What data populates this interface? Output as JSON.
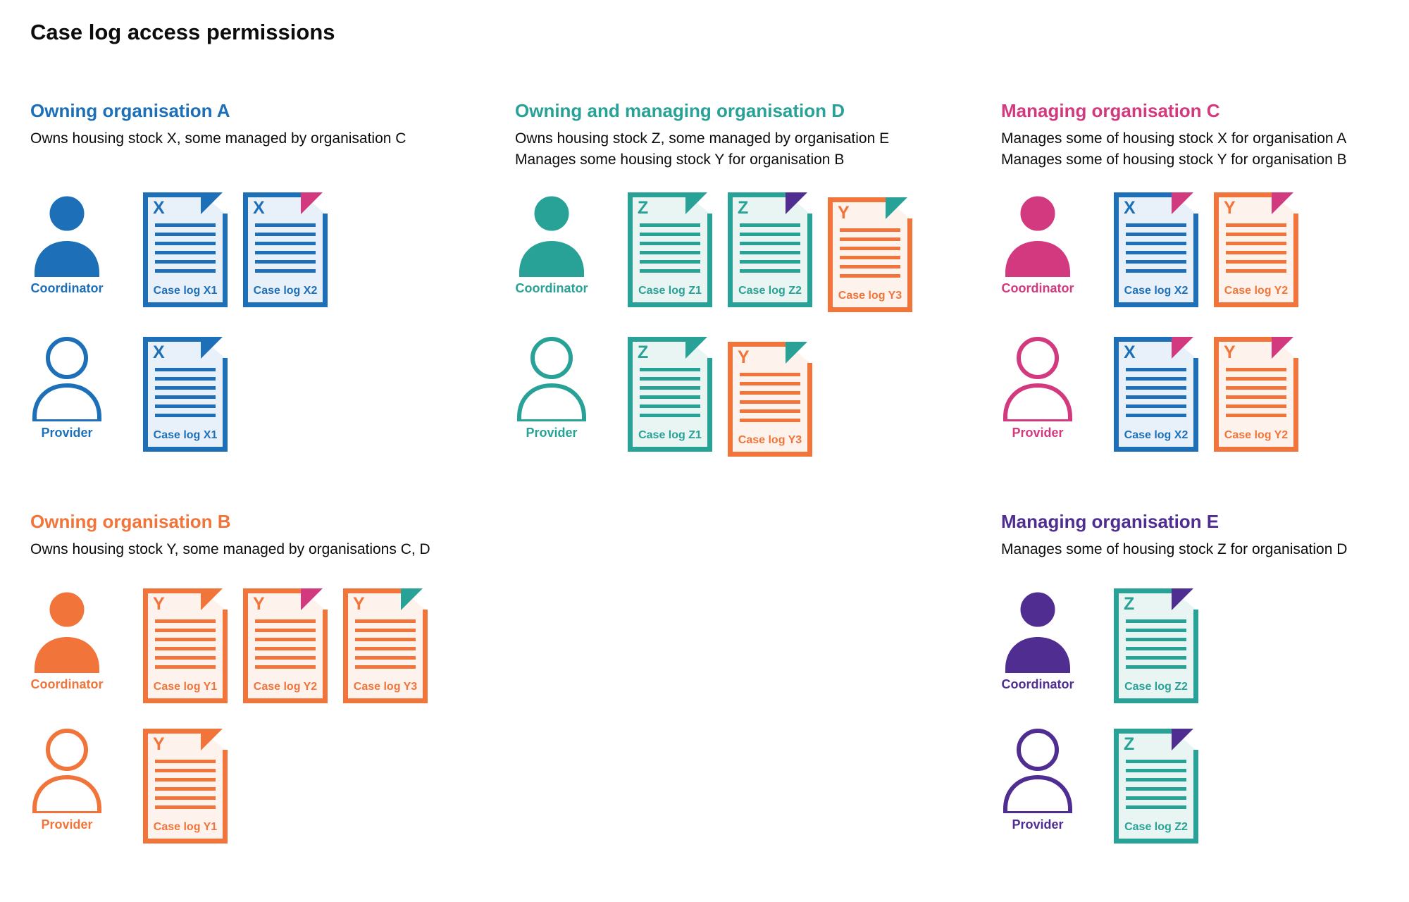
{
  "title": "Case log access permissions",
  "palette": {
    "blue": "#1d70b8",
    "teal": "#28a197",
    "orange": "#f1753a",
    "pink": "#d2397e",
    "purple": "#4f2d91",
    "text": "#0b0c0c",
    "tint_blue": "#e8f1f9",
    "tint_teal": "#e9f5f2",
    "tint_orange": "#fdf3ec"
  },
  "sections": [
    {
      "id": "org-a",
      "heading": "Owning organisation A",
      "color": "blue",
      "description": [
        "Owns housing stock X, some managed by organisation C"
      ],
      "roles": [
        {
          "label": "Coordinator",
          "filled": true,
          "docs": [
            {
              "letter": "X",
              "label": "Case log X1",
              "stock": "blue",
              "flap": "blue"
            },
            {
              "letter": "X",
              "label": "Case log X2",
              "stock": "blue",
              "flap": "pink"
            }
          ]
        },
        {
          "label": "Provider",
          "filled": false,
          "docs": [
            {
              "letter": "X",
              "label": "Case log X1",
              "stock": "blue",
              "flap": "blue"
            }
          ]
        }
      ]
    },
    {
      "id": "org-d",
      "heading": "Owning and managing organisation D",
      "color": "teal",
      "description": [
        "Owns housing stock Z, some managed by organisation E",
        "Manages some housing stock Y for organisation B"
      ],
      "roles": [
        {
          "label": "Coordinator",
          "filled": true,
          "docs": [
            {
              "letter": "Z",
              "label": "Case log Z1",
              "stock": "teal",
              "flap": "teal"
            },
            {
              "letter": "Z",
              "label": "Case log Z2",
              "stock": "teal",
              "flap": "purple"
            },
            {
              "letter": "Y",
              "label": "Case log Y3",
              "stock": "orange",
              "flap": "teal",
              "nudge": true
            }
          ]
        },
        {
          "label": "Provider",
          "filled": false,
          "docs": [
            {
              "letter": "Z",
              "label": "Case log Z1",
              "stock": "teal",
              "flap": "teal"
            },
            {
              "letter": "Y",
              "label": "Case log Y3",
              "stock": "orange",
              "flap": "teal",
              "nudge": true
            }
          ]
        }
      ]
    },
    {
      "id": "org-c",
      "heading": "Managing organisation C",
      "color": "pink",
      "description": [
        "Manages some of housing stock X for organisation A",
        "Manages some of housing stock Y for organisation B"
      ],
      "roles": [
        {
          "label": "Coordinator",
          "filled": true,
          "docs": [
            {
              "letter": "X",
              "label": "Case log X2",
              "stock": "blue",
              "flap": "pink"
            },
            {
              "letter": "Y",
              "label": "Case log Y2",
              "stock": "orange",
              "flap": "pink"
            }
          ]
        },
        {
          "label": "Provider",
          "filled": false,
          "docs": [
            {
              "letter": "X",
              "label": "Case log X2",
              "stock": "blue",
              "flap": "pink"
            },
            {
              "letter": "Y",
              "label": "Case log Y2",
              "stock": "orange",
              "flap": "pink"
            }
          ]
        }
      ]
    },
    {
      "id": "org-b",
      "heading": "Owning organisation B",
      "color": "orange",
      "description": [
        "Owns housing stock Y, some managed by organisations C, D"
      ],
      "roles": [
        {
          "label": "Coordinator",
          "filled": true,
          "docs": [
            {
              "letter": "Y",
              "label": "Case log Y1",
              "stock": "orange",
              "flap": "orange"
            },
            {
              "letter": "Y",
              "label": "Case log Y2",
              "stock": "orange",
              "flap": "pink"
            },
            {
              "letter": "Y",
              "label": "Case log Y3",
              "stock": "orange",
              "flap": "teal"
            }
          ]
        },
        {
          "label": "Provider",
          "filled": false,
          "docs": [
            {
              "letter": "Y",
              "label": "Case log Y1",
              "stock": "orange",
              "flap": "orange"
            }
          ]
        }
      ]
    },
    {
      "id": "org-e",
      "heading": "Managing organisation E",
      "color": "purple",
      "description": [
        "Manages some of housing stock Z for organisation D"
      ],
      "roles": [
        {
          "label": "Coordinator",
          "filled": true,
          "docs": [
            {
              "letter": "Z",
              "label": "Case log Z2",
              "stock": "teal",
              "flap": "purple"
            }
          ]
        },
        {
          "label": "Provider",
          "filled": false,
          "docs": [
            {
              "letter": "Z",
              "label": "Case log Z2",
              "stock": "teal",
              "flap": "purple"
            }
          ]
        }
      ]
    }
  ]
}
